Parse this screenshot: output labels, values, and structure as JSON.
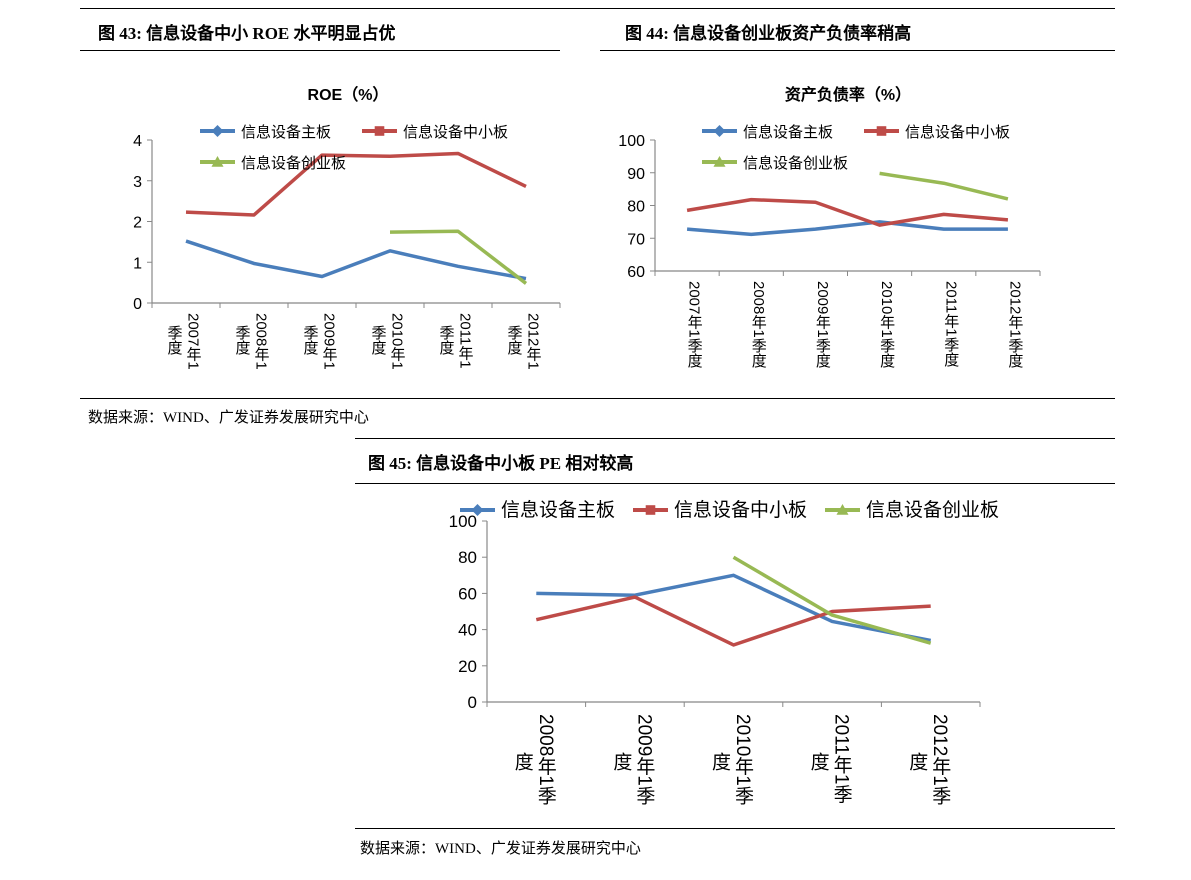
{
  "figures": [
    {
      "title": "图  43:  信息设备中小 ROE 水平明显占优"
    },
    {
      "title": "图  44:  信息设备创业板资产负债率稍高"
    },
    {
      "title": "图  45:  信息设备中小板 PE 相对较高"
    }
  ],
  "sources": [
    "数据来源：WIND、广发证券发展研究中心",
    "数据来源：WIND、广发证券发展研究中心"
  ],
  "colors": {
    "main": "#4A7EBB",
    "sme": "#BE4B48",
    "gem": "#98B954"
  },
  "chart_data": [
    {
      "type": "line",
      "title": "ROE（%）",
      "categories": [
        "2007年1季度",
        "2008年1季度",
        "2009年1季度",
        "2010年1季度",
        "2011年1季度",
        "2012年1季度"
      ],
      "ylim": [
        0,
        4
      ],
      "yticks": [
        "0",
        "1",
        "2",
        "3",
        "4"
      ],
      "grid": false,
      "legend": "top",
      "series": [
        {
          "name": "信息设备主板",
          "marker": "diamond",
          "values": [
            1.52,
            0.97,
            0.65,
            1.28,
            0.9,
            0.6
          ]
        },
        {
          "name": "信息设备中小板",
          "marker": "square",
          "values": [
            2.23,
            2.16,
            3.63,
            3.6,
            3.67,
            2.86
          ]
        },
        {
          "name": "信息设备创业板",
          "marker": "triangle",
          "values": [
            null,
            null,
            null,
            1.74,
            1.76,
            0.48
          ]
        }
      ]
    },
    {
      "type": "line",
      "title": "资产负债率（%）",
      "categories": [
        "2007年1季度",
        "2008年1季度",
        "2009年1季度",
        "2010年1季度",
        "2011年1季度",
        "2012年1季度"
      ],
      "ylim": [
        60,
        100
      ],
      "yticks": [
        "60",
        "70",
        "80",
        "90",
        "100"
      ],
      "grid": false,
      "legend": "top",
      "series": [
        {
          "name": "信息设备主板",
          "marker": "diamond",
          "values": [
            72.8,
            71.2,
            72.8,
            75.0,
            72.8,
            72.8
          ]
        },
        {
          "name": "信息设备中小板",
          "marker": "square",
          "values": [
            78.5,
            81.8,
            81.0,
            74.0,
            77.3,
            75.6
          ]
        },
        {
          "name": "信息设备创业板",
          "marker": "triangle",
          "values": [
            null,
            null,
            null,
            89.8,
            86.8,
            82.0
          ]
        }
      ]
    },
    {
      "type": "line",
      "title": "",
      "categories": [
        "2008年1季度",
        "2009年1季度",
        "2010年1季度",
        "2011年1季度",
        "2012年1季度"
      ],
      "ylim": [
        0,
        100
      ],
      "yticks": [
        "0",
        "20",
        "40",
        "60",
        "80",
        "100"
      ],
      "grid": false,
      "legend": "top",
      "series": [
        {
          "name": "信息设备主板",
          "marker": "diamond",
          "values": [
            60.0,
            59.0,
            70.0,
            44.5,
            34.0
          ]
        },
        {
          "name": "信息设备中小板",
          "marker": "square",
          "values": [
            45.5,
            58.0,
            31.5,
            50.0,
            53.0
          ]
        },
        {
          "name": "信息设备创业板",
          "marker": "triangle",
          "values": [
            null,
            null,
            80.0,
            48.0,
            32.5
          ]
        }
      ]
    }
  ]
}
